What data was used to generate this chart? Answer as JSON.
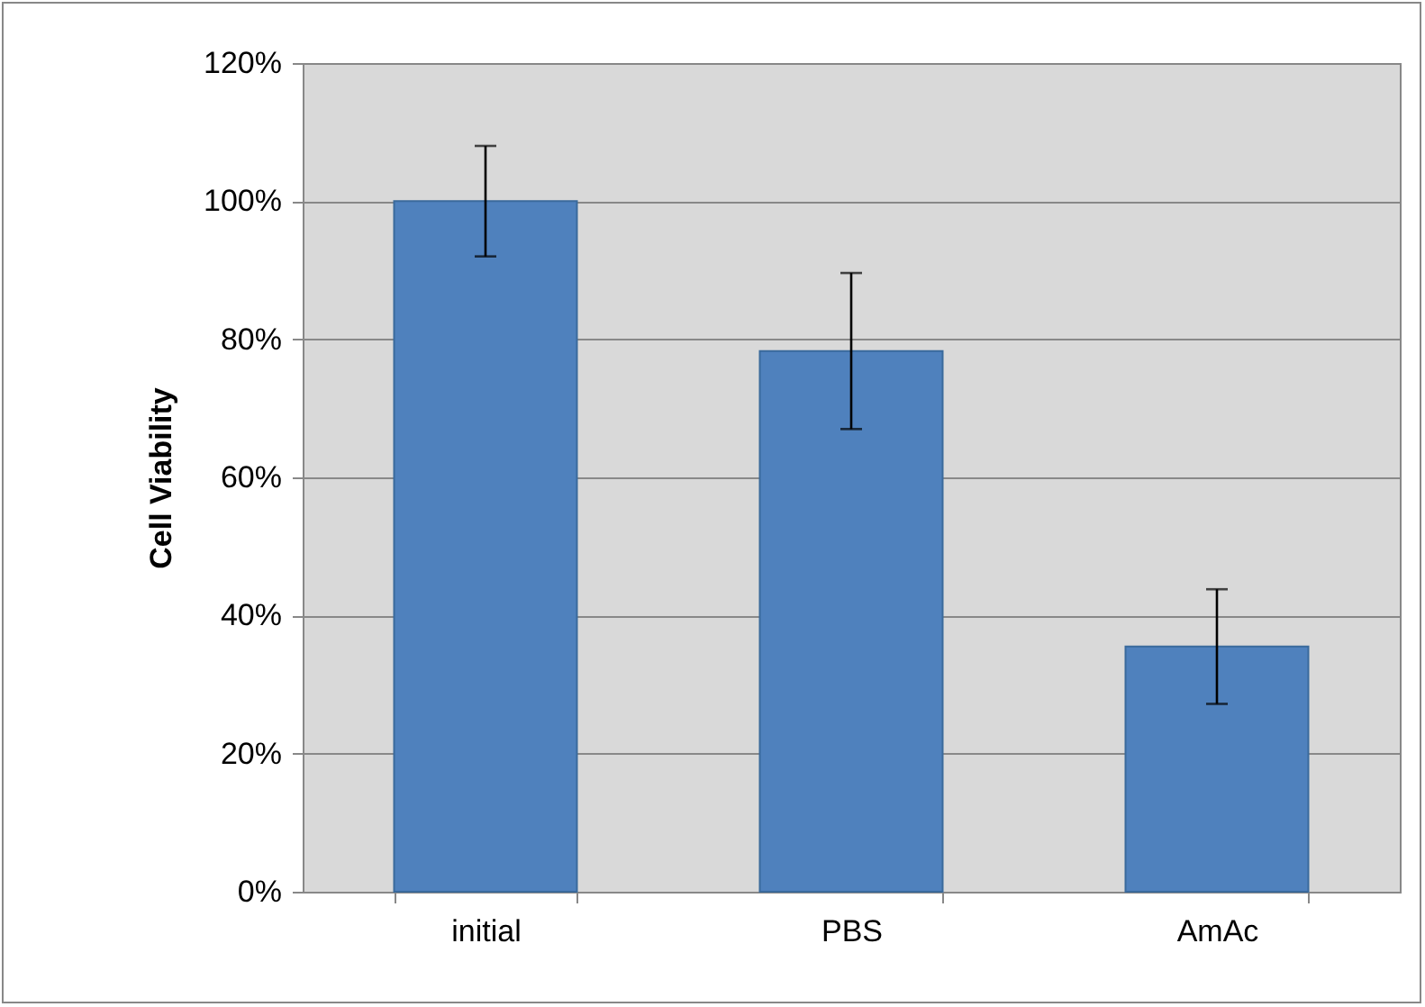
{
  "chart_data": {
    "type": "bar",
    "ylabel": "Cell Viability",
    "categories": [
      "initial",
      "PBS",
      "AmAc"
    ],
    "values": [
      100,
      78.3,
      35.5
    ],
    "errors": [
      8,
      11.3,
      8.3
    ],
    "color": "#4f81bd",
    "ylim": [
      0,
      120
    ],
    "yticks": [
      {
        "value": 0,
        "label": "0%"
      },
      {
        "value": 20,
        "label": "20%"
      },
      {
        "value": 40,
        "label": "40%"
      },
      {
        "value": 60,
        "label": "60%"
      },
      {
        "value": 80,
        "label": "80%"
      },
      {
        "value": 100,
        "label": "100%"
      },
      {
        "value": 120,
        "label": "120%"
      }
    ],
    "grid": "y"
  }
}
